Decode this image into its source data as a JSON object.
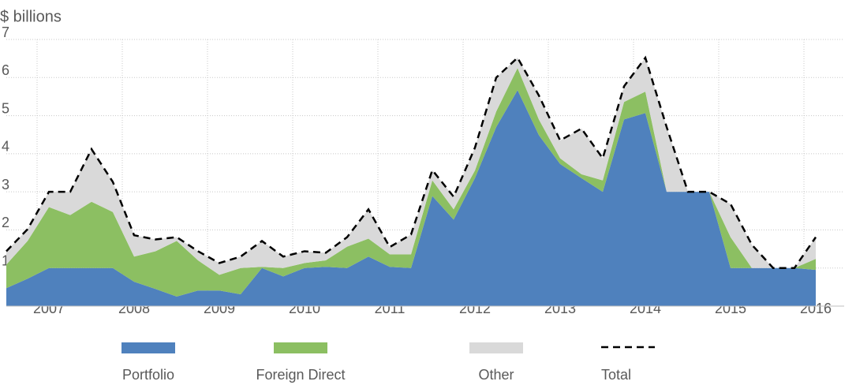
{
  "chart_data": {
    "type": "stacked-area",
    "title": "$ billions",
    "categories": [
      null,
      null,
      "2007",
      null,
      null,
      null,
      "2008",
      null,
      null,
      null,
      "2009",
      null,
      null,
      null,
      "2010",
      null,
      null,
      null,
      "2011",
      null,
      null,
      null,
      "2012",
      null,
      null,
      null,
      "2013",
      null,
      null,
      null,
      "2014",
      null,
      null,
      null,
      "2015",
      null,
      null,
      null,
      "2016"
    ],
    "series": [
      {
        "name": "Portfolio",
        "color": "#4f81bd",
        "values": [
          0.47,
          0.72,
          1.0,
          1.0,
          1.0,
          1.0,
          0.64,
          0.45,
          0.25,
          0.41,
          0.41,
          0.31,
          1.0,
          0.78,
          1.0,
          1.03,
          1.0,
          1.3,
          1.03,
          1.0,
          2.89,
          2.27,
          3.36,
          4.7,
          5.67,
          4.49,
          3.73,
          3.36,
          3.0,
          4.9,
          5.07,
          3.0,
          3.0,
          3.0,
          1.0,
          1.0,
          1.0,
          1.0,
          0.95
        ]
      },
      {
        "name": "Foreign Direct",
        "color": "#8cbf62",
        "values": [
          0.62,
          0.99,
          1.6,
          1.39,
          1.74,
          1.47,
          0.66,
          0.99,
          1.46,
          0.79,
          0.41,
          0.69,
          0.03,
          0.22,
          0.13,
          0.17,
          0.56,
          0.47,
          0.33,
          0.36,
          0.41,
          0.27,
          0.2,
          0.41,
          0.58,
          0.41,
          0.15,
          0.1,
          0.3,
          0.46,
          0.56,
          0,
          0,
          0,
          0.81,
          0,
          0,
          0,
          0.29
        ]
      },
      {
        "name": "Other",
        "color": "#d9d9d9",
        "values": [
          0.35,
          0.31,
          0.4,
          0.61,
          1.38,
          0.79,
          0.56,
          0.31,
          0.1,
          0.24,
          0.31,
          0.3,
          0.68,
          0.3,
          0.31,
          0.2,
          0.25,
          0.77,
          0.19,
          0.52,
          0.27,
          0.33,
          0.6,
          0.89,
          0.27,
          0.63,
          0.47,
          1.2,
          0.58,
          0.41,
          0.89,
          1.7,
          0,
          0,
          0.87,
          0.61,
          0,
          0,
          0.57
        ]
      },
      {
        "name": "Total",
        "color": "#000000",
        "line": "dashed",
        "values": [
          1.44,
          2.02,
          3.0,
          3.0,
          4.12,
          3.26,
          1.86,
          1.75,
          1.81,
          1.44,
          1.13,
          1.3,
          1.71,
          1.3,
          1.44,
          1.4,
          1.81,
          2.54,
          1.55,
          1.88,
          3.57,
          2.87,
          4.16,
          6.0,
          6.52,
          5.53,
          4.35,
          4.66,
          3.88,
          5.77,
          6.52,
          4.7,
          3.0,
          3.0,
          2.68,
          1.61,
          1.0,
          1.0,
          1.81
        ]
      }
    ],
    "ylim": [
      0,
      7
    ],
    "yticks": [
      1,
      2,
      3,
      4,
      5,
      6,
      7
    ],
    "grid": true
  }
}
